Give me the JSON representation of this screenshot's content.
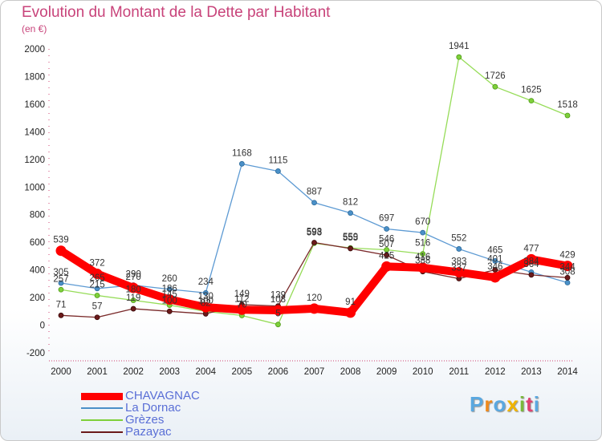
{
  "title": "Evolution du Montant de la Dette par Habitant",
  "subtitle": "(en €)",
  "brand": "Proxiti",
  "chart_data": {
    "type": "line",
    "title": "Evolution du Montant de la Dette par Habitant",
    "ylabel": "(en €)",
    "xlabel": "",
    "x": [
      2000,
      2001,
      2002,
      2003,
      2004,
      2005,
      2006,
      2007,
      2008,
      2009,
      2010,
      2011,
      2012,
      2013,
      2014
    ],
    "ylim": [
      -200,
      2000
    ],
    "yticks": [
      -200,
      0,
      200,
      400,
      600,
      800,
      1000,
      1200,
      1400,
      1600,
      1800,
      2000
    ],
    "grid": false,
    "legend": "bottom-left",
    "series": [
      {
        "name": "CHAVAGNAC",
        "color": "#ff0000",
        "values": [
          539,
          372,
          270,
          186,
          130,
          112,
          108,
          120,
          91,
          425,
          416,
          383,
          346,
          477,
          429
        ]
      },
      {
        "name": "La Dornac",
        "color": "#4a90c8",
        "values": [
          305,
          265,
          290,
          260,
          234,
          1168,
          1115,
          887,
          812,
          697,
          670,
          552,
          465,
          384,
          308
        ]
      },
      {
        "name": "Grèzes",
        "color": "#7ed03a",
        "values": [
          257,
          215,
          180,
          145,
          100,
          70,
          5,
          593,
          559,
          546,
          516,
          1941,
          1726,
          1625,
          1518
        ]
      },
      {
        "name": "Pazayac",
        "color": "#6b1a1a",
        "values": [
          71,
          57,
          119,
          100,
          82,
          149,
          139,
          598,
          555,
          507,
          388,
          337,
          401,
          364,
          344
        ]
      }
    ]
  }
}
